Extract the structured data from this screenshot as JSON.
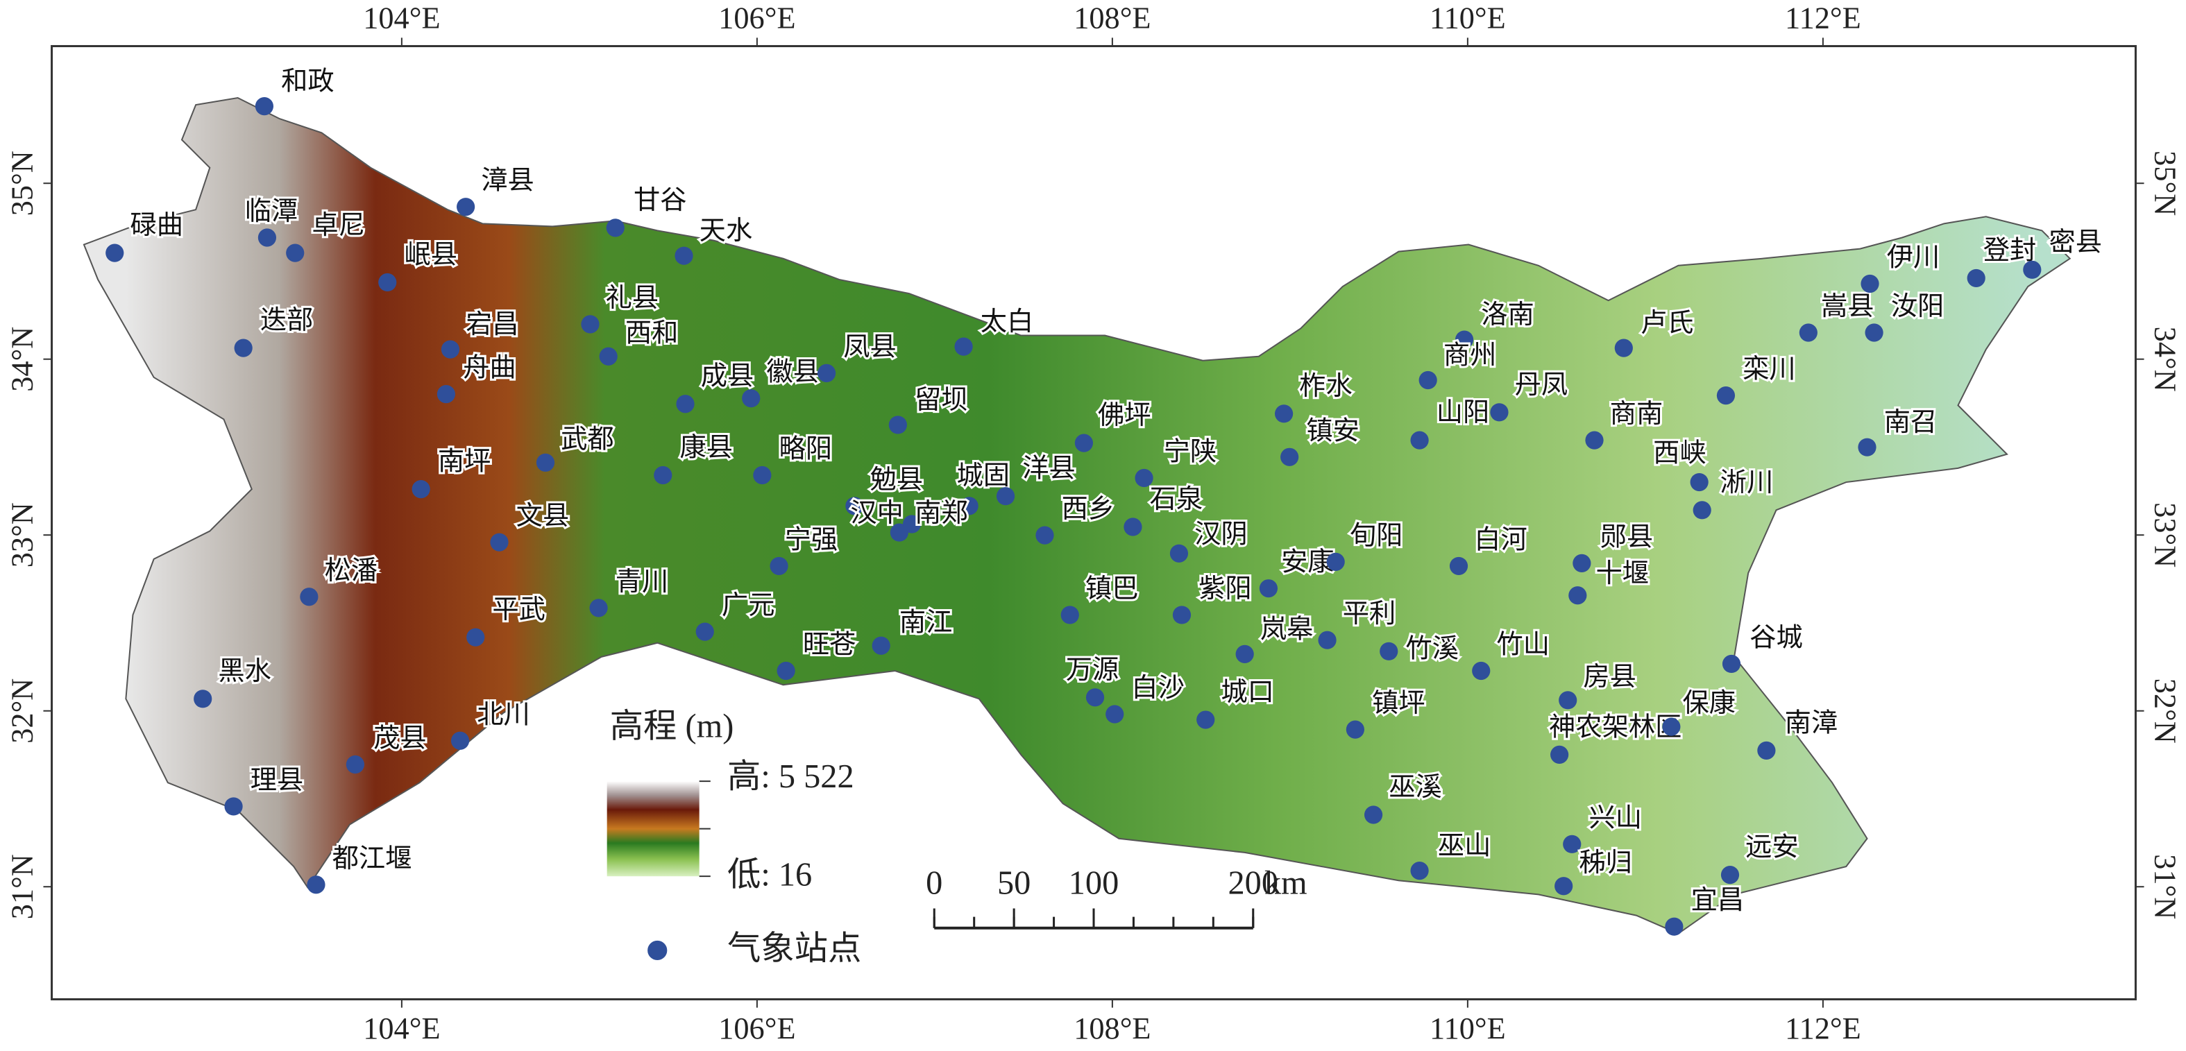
{
  "map": {
    "xlim": [
      102.03,
      113.76
    ],
    "ylim": [
      30.36,
      35.78
    ],
    "xticks": [
      {
        "value": 104,
        "label": "104°E"
      },
      {
        "value": 106,
        "label": "106°E"
      },
      {
        "value": 108,
        "label": "108°E"
      },
      {
        "value": 110,
        "label": "110°E"
      },
      {
        "value": 112,
        "label": "112°E"
      }
    ],
    "yticks": [
      {
        "value": 31,
        "label": "31°N"
      },
      {
        "value": 32,
        "label": "32°N"
      },
      {
        "value": 33,
        "label": "33°N"
      },
      {
        "value": 34,
        "label": "34°N"
      },
      {
        "value": 35,
        "label": "35°N"
      }
    ]
  },
  "legend": {
    "title": "高程 (m)",
    "high": "高: 5 522",
    "low": "低: 16",
    "stations": "气象站点"
  },
  "scale_bar": {
    "ticks": [
      0,
      50,
      100,
      200
    ],
    "unit": "km"
  },
  "stations": [
    "和政",
    "碌曲",
    "临潭",
    "卓尼",
    "漳县",
    "岷县",
    "迭部",
    "宕昌",
    "舟曲",
    "甘谷",
    "天水",
    "礼县",
    "西和",
    "成县",
    "徽县",
    "凤县",
    "太白",
    "南坪",
    "武都",
    "康县",
    "略阳",
    "留坝",
    "勉县",
    "城固",
    "洋县",
    "汉中",
    "南郑",
    "佛坪",
    "宁陕",
    "西乡",
    "石泉",
    "汉阴",
    "文县",
    "松潘",
    "平武",
    "青川",
    "宁强",
    "广元",
    "旺苍",
    "南江",
    "镇巴",
    "紫阳",
    "安康",
    "岚皋",
    "平利",
    "旬阳",
    "白河",
    "郧县",
    "十堰",
    "黑水",
    "茂县",
    "北川",
    "理县",
    "都江堰",
    "万源",
    "白沙",
    "城口",
    "镇坪",
    "竹溪",
    "竹山",
    "房县",
    "神农架林区",
    "保康",
    "南漳",
    "谷城",
    "巫溪",
    "巫山",
    "兴山",
    "秭归",
    "宜昌",
    "远安",
    "洛南",
    "商州",
    "丹凤",
    "山阳",
    "柞水",
    "镇安",
    "卢氏",
    "商南",
    "西峡",
    "淅川",
    "栾川",
    "嵩县",
    "汝阳",
    "伊川",
    "登封",
    "密县",
    "南召"
  ]
}
